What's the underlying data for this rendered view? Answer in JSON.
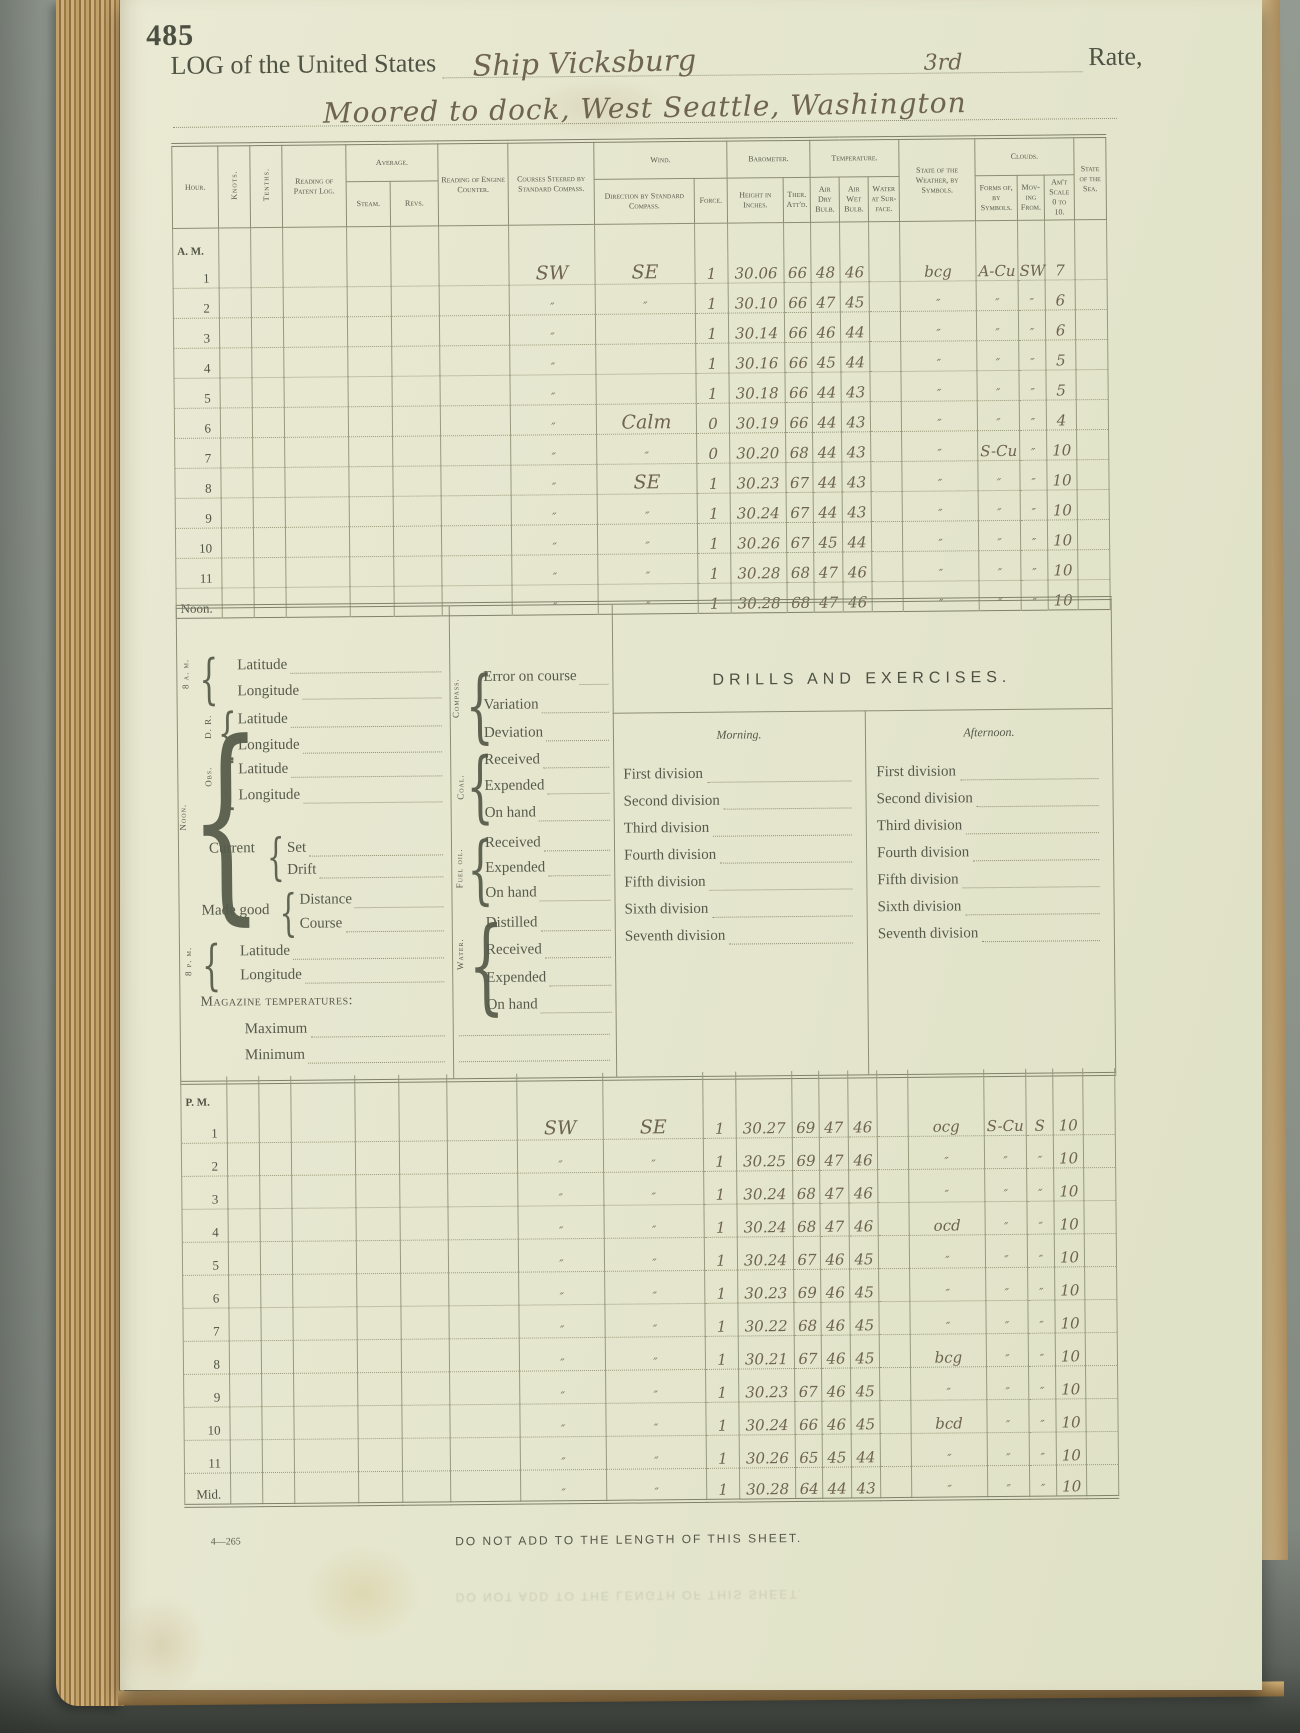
{
  "page": {
    "number": "485",
    "title_prefix": "LOG of the United States",
    "ship_name_hw": "Ship Vicksburg",
    "rate_hw": "3rd",
    "rate_label": "Rate,",
    "location_hw": "Moored to dock, West Seattle, Washington",
    "form_number": "4—265",
    "footer_notice": "DO NOT ADD TO THE LENGTH OF THIS SHEET."
  },
  "table": {
    "headers": {
      "hour": "Hour.",
      "knots": "Knots.",
      "tenths": "Tenths.",
      "patent_log": "Reading of Patent Log.",
      "average": "Average.",
      "steam": "Steam.",
      "revs": "Revs.",
      "engine_counter": "Reading of Engine Counter.",
      "courses": "Courses Steered by Standard Compass.",
      "wind": "Wind.",
      "wind_direction": "Direction by Standard Compass.",
      "force": "Force.",
      "barometer": "Barometer.",
      "height": "Height in Inches.",
      "ther": "Ther. Att'd.",
      "temperature": "Temperature.",
      "air_dry": "Air Dry Bulb.",
      "air_wet": "Air Wet Bulb.",
      "water_surface": "Water at Sur-face.",
      "weather": "State of the Weather, by Symbols.",
      "clouds": "Clouds.",
      "forms": "Forms of, by Symbols.",
      "moving": "Mov-ing From.",
      "amount": "Am't Scale 0 to 10.",
      "sea": "State of the Sea."
    },
    "am_label": "A. M.",
    "pm_label": "P. M.",
    "am_rows": [
      {
        "hour": "1",
        "courses": "SW",
        "wind": "SE",
        "force": "1",
        "bar": "30.06",
        "ther": "66",
        "dry": "48",
        "wet": "46",
        "weather": "bcg",
        "forms": "A-Cu",
        "from": "SW",
        "amt": "7"
      },
      {
        "hour": "2",
        "courses": "″",
        "wind": "″",
        "force": "1",
        "bar": "30.10",
        "ther": "66",
        "dry": "47",
        "wet": "45",
        "weather": "″",
        "forms": "″",
        "from": "″",
        "amt": "6"
      },
      {
        "hour": "3",
        "courses": "″",
        "wind": "",
        "force": "1",
        "bar": "30.14",
        "ther": "66",
        "dry": "46",
        "wet": "44",
        "weather": "″",
        "forms": "″",
        "from": "″",
        "amt": "6"
      },
      {
        "hour": "4",
        "courses": "″",
        "wind": "",
        "force": "1",
        "bar": "30.16",
        "ther": "66",
        "dry": "45",
        "wet": "44",
        "weather": "″",
        "forms": "″",
        "from": "″",
        "amt": "5"
      },
      {
        "hour": "5",
        "courses": "″",
        "wind": "",
        "force": "1",
        "bar": "30.18",
        "ther": "66",
        "dry": "44",
        "wet": "43",
        "weather": "″",
        "forms": "″",
        "from": "″",
        "amt": "5"
      },
      {
        "hour": "6",
        "courses": "″",
        "wind": "Calm",
        "force": "0",
        "bar": "30.19",
        "ther": "66",
        "dry": "44",
        "wet": "43",
        "weather": "″",
        "forms": "″",
        "from": "″",
        "amt": "4"
      },
      {
        "hour": "7",
        "courses": "″",
        "wind": "″",
        "force": "0",
        "bar": "30.20",
        "ther": "68",
        "dry": "44",
        "wet": "43",
        "weather": "″",
        "forms": "S-Cu",
        "from": "″",
        "amt": "10"
      },
      {
        "hour": "8",
        "courses": "″",
        "wind": "SE",
        "force": "1",
        "bar": "30.23",
        "ther": "67",
        "dry": "44",
        "wet": "43",
        "weather": "″",
        "forms": "″",
        "from": "″",
        "amt": "10"
      },
      {
        "hour": "9",
        "courses": "″",
        "wind": "″",
        "force": "1",
        "bar": "30.24",
        "ther": "67",
        "dry": "44",
        "wet": "43",
        "weather": "″",
        "forms": "″",
        "from": "″",
        "amt": "10"
      },
      {
        "hour": "10",
        "courses": "″",
        "wind": "″",
        "force": "1",
        "bar": "30.26",
        "ther": "67",
        "dry": "45",
        "wet": "44",
        "weather": "″",
        "forms": "″",
        "from": "″",
        "amt": "10"
      },
      {
        "hour": "11",
        "courses": "″",
        "wind": "″",
        "force": "1",
        "bar": "30.28",
        "ther": "68",
        "dry": "47",
        "wet": "46",
        "weather": "″",
        "forms": "″",
        "from": "″",
        "amt": "10"
      },
      {
        "hour": "Noon.",
        "courses": "″",
        "wind": "″",
        "force": "1",
        "bar": "30.28",
        "ther": "68",
        "dry": "47",
        "wet": "46",
        "weather": "″",
        "forms": "″",
        "from": "″",
        "amt": "10"
      }
    ],
    "pm_rows": [
      {
        "hour": "1",
        "courses": "SW",
        "wind": "SE",
        "force": "1",
        "bar": "30.27",
        "ther": "69",
        "dry": "47",
        "wet": "46",
        "weather": "ocg",
        "forms": "S-Cu",
        "from": "S",
        "amt": "10"
      },
      {
        "hour": "2",
        "courses": "″",
        "wind": "″",
        "force": "1",
        "bar": "30.25",
        "ther": "69",
        "dry": "47",
        "wet": "46",
        "weather": "″",
        "forms": "″",
        "from": "″",
        "amt": "10"
      },
      {
        "hour": "3",
        "courses": "″",
        "wind": "″",
        "force": "1",
        "bar": "30.24",
        "ther": "68",
        "dry": "47",
        "wet": "46",
        "weather": "″",
        "forms": "″",
        "from": "″",
        "amt": "10"
      },
      {
        "hour": "4",
        "courses": "″",
        "wind": "″",
        "force": "1",
        "bar": "30.24",
        "ther": "68",
        "dry": "47",
        "wet": "46",
        "weather": "ocd",
        "forms": "″",
        "from": "″",
        "amt": "10"
      },
      {
        "hour": "5",
        "courses": "″",
        "wind": "″",
        "force": "1",
        "bar": "30.24",
        "ther": "67",
        "dry": "46",
        "wet": "45",
        "weather": "″",
        "forms": "″",
        "from": "″",
        "amt": "10"
      },
      {
        "hour": "6",
        "courses": "″",
        "wind": "″",
        "force": "1",
        "bar": "30.23",
        "ther": "69",
        "dry": "46",
        "wet": "45",
        "weather": "″",
        "forms": "″",
        "from": "″",
        "amt": "10"
      },
      {
        "hour": "7",
        "courses": "″",
        "wind": "″",
        "force": "1",
        "bar": "30.22",
        "ther": "68",
        "dry": "46",
        "wet": "45",
        "weather": "″",
        "forms": "″",
        "from": "″",
        "amt": "10"
      },
      {
        "hour": "8",
        "courses": "″",
        "wind": "″",
        "force": "1",
        "bar": "30.21",
        "ther": "67",
        "dry": "46",
        "wet": "45",
        "weather": "bcg",
        "forms": "″",
        "from": "″",
        "amt": "10"
      },
      {
        "hour": "9",
        "courses": "″",
        "wind": "″",
        "force": "1",
        "bar": "30.23",
        "ther": "67",
        "dry": "46",
        "wet": "45",
        "weather": "″",
        "forms": "″",
        "from": "″",
        "amt": "10"
      },
      {
        "hour": "10",
        "courses": "″",
        "wind": "″",
        "force": "1",
        "bar": "30.24",
        "ther": "66",
        "dry": "46",
        "wet": "45",
        "weather": "bcd",
        "forms": "″",
        "from": "″",
        "amt": "10"
      },
      {
        "hour": "11",
        "courses": "″",
        "wind": "″",
        "force": "1",
        "bar": "30.26",
        "ther": "65",
        "dry": "45",
        "wet": "44",
        "weather": "″",
        "forms": "″",
        "from": "″",
        "amt": "10"
      },
      {
        "hour": "Mid.",
        "courses": "″",
        "wind": "″",
        "force": "1",
        "bar": "30.28",
        "ther": "64",
        "dry": "44",
        "wet": "43",
        "weather": "″",
        "forms": "″",
        "from": "″",
        "amt": "10"
      }
    ]
  },
  "observations": {
    "eight_am": {
      "side": "8 a. m.",
      "items": [
        "Latitude",
        "Longitude"
      ]
    },
    "noon_label": "Noon.",
    "dead_reckoning": {
      "side": "D. R.",
      "items": [
        "Latitude",
        "Longitude"
      ]
    },
    "observed": {
      "side": "Obs.",
      "items": [
        "Latitude",
        "Longitude"
      ]
    },
    "current": {
      "label": "Current",
      "items": [
        "Set",
        "Drift"
      ]
    },
    "made_good": {
      "label": "Made good",
      "items": [
        "Distance",
        "Course"
      ]
    },
    "eight_pm": {
      "side": "8 p. m.",
      "items": [
        "Latitude",
        "Longitude"
      ]
    },
    "magazine": {
      "heading": "Magazine temperatures:",
      "items": [
        "Maximum",
        "Minimum"
      ]
    },
    "compass": {
      "side": "Compass.",
      "items": [
        "Error on course",
        "Variation",
        "Deviation"
      ]
    },
    "coal": {
      "side": "Coal.",
      "items": [
        "Received",
        "Expended",
        "On hand"
      ]
    },
    "fuel_oil": {
      "side": "Fuel oil.",
      "items": [
        "Received",
        "Expended",
        "On hand"
      ]
    },
    "water": {
      "side": "Water.",
      "items": [
        "Distilled",
        "Received",
        "Expended",
        "On hand"
      ]
    }
  },
  "drills": {
    "title": "DRILLS AND EXERCISES.",
    "morning_label": "Morning.",
    "afternoon_label": "Afternoon.",
    "divisions": [
      "First division",
      "Second division",
      "Third division",
      "Fourth division",
      "Fifth division",
      "Sixth division",
      "Seventh division"
    ]
  }
}
